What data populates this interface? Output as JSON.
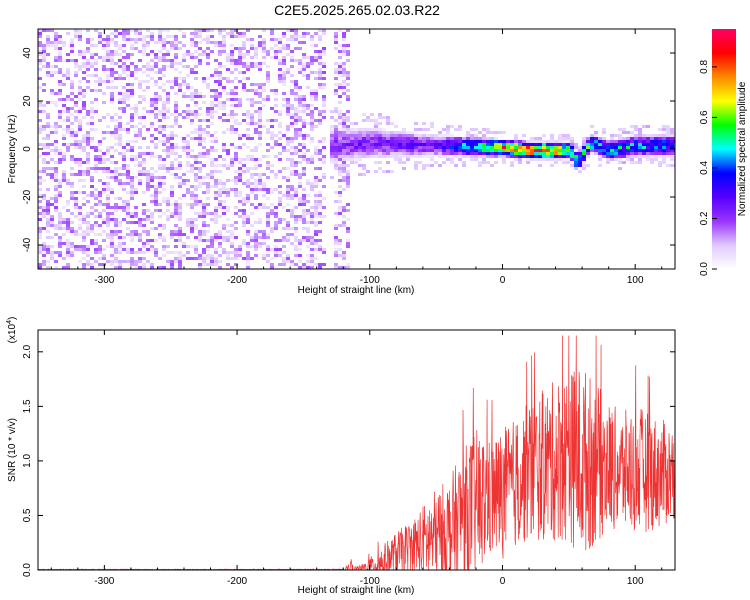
{
  "title": "C2E5.2025.265.02.03.R22",
  "colors": {
    "snr_line": "#ee3333",
    "background": "#ffffff",
    "axis": "#000000"
  },
  "chart_data": [
    {
      "type": "heatmap",
      "name": "spectrogram",
      "xlabel": "Height of straight line (km)",
      "ylabel": "Frequency (Hz)",
      "xlim": [
        -350,
        130
      ],
      "ylim": [
        -50,
        50
      ],
      "x_ticks": [
        -300,
        -200,
        -100,
        0,
        100
      ],
      "x_tick_labels": [
        "-300",
        "-200",
        "-100",
        "0",
        "100"
      ],
      "y_ticks": [
        -40,
        -20,
        0,
        20,
        40
      ],
      "y_tick_labels": [
        "-40",
        "-20",
        "0",
        "20",
        "40"
      ],
      "colorbar": {
        "label": "Normalized spectral amplitude",
        "range": [
          0,
          0.95
        ],
        "ticks": [
          0.0,
          0.2,
          0.4,
          0.6,
          0.8
        ],
        "tick_labels": [
          "0.0",
          "0.2",
          "0.4",
          "0.6",
          "0.8"
        ],
        "colormap": [
          "#ffffff",
          "#e0c8ff",
          "#9933ff",
          "#5500ff",
          "#0000ff",
          "#00ffff",
          "#00ff00",
          "#ffff00",
          "#ff8800",
          "#ff0000",
          "#ff0066"
        ]
      },
      "regions": [
        {
          "description": "broadband noise",
          "x_range": [
            -350,
            -115
          ],
          "freq_range": [
            -50,
            50
          ],
          "amplitude": 0.1
        },
        {
          "description": "signal band",
          "x_range": [
            -130,
            130
          ],
          "center_freq_hz": [
            [
              -130,
              2
            ],
            [
              -100,
              3
            ],
            [
              -50,
              2
            ],
            [
              0,
              1
            ],
            [
              20,
              0
            ],
            [
              50,
              0
            ],
            [
              55,
              -5
            ],
            [
              65,
              3
            ],
            [
              80,
              0
            ],
            [
              100,
              2
            ],
            [
              130,
              2
            ]
          ],
          "halfwidth_hz": [
            [
              -130,
              8
            ],
            [
              -100,
              7
            ],
            [
              -50,
              5
            ],
            [
              0,
              4
            ],
            [
              50,
              4
            ],
            [
              100,
              5
            ],
            [
              130,
              5
            ]
          ],
          "peak_amplitude": [
            [
              -130,
              0.25
            ],
            [
              -50,
              0.3
            ],
            [
              -20,
              0.6
            ],
            [
              0,
              0.85
            ],
            [
              30,
              0.95
            ],
            [
              50,
              0.7
            ],
            [
              70,
              0.55
            ],
            [
              100,
              0.5
            ],
            [
              130,
              0.45
            ]
          ]
        }
      ]
    },
    {
      "type": "line",
      "name": "snr",
      "xlabel": "Height of straight line (km)",
      "ylabel": "SNR (10 * v/v)",
      "y_multiplier": "(x10^4)",
      "xlim": [
        -350,
        130
      ],
      "ylim": [
        0,
        2.2
      ],
      "x_ticks": [
        -300,
        -200,
        -100,
        0,
        100
      ],
      "x_tick_labels": [
        "-300",
        "-200",
        "-100",
        "0",
        "100"
      ],
      "y_ticks": [
        0,
        0.5,
        1.0,
        1.5,
        2.0
      ],
      "y_tick_labels": [
        "0.0",
        "0.5",
        "1.0",
        "1.5",
        "2.0"
      ],
      "series": [
        {
          "name": "SNR",
          "color": "#ee3333",
          "envelope_x": [
            -350,
            -120,
            -115,
            -110,
            -100,
            -90,
            -80,
            -70,
            -60,
            -50,
            -40,
            -30,
            -20,
            -10,
            0,
            10,
            20,
            30,
            40,
            50,
            60,
            70,
            80,
            90,
            100,
            110,
            120,
            130
          ],
          "envelope_mean": [
            0.005,
            0.005,
            0.02,
            0.01,
            0.03,
            0.08,
            0.15,
            0.2,
            0.25,
            0.3,
            0.35,
            0.5,
            0.6,
            0.65,
            0.7,
            0.8,
            0.9,
            0.95,
            1.0,
            1.05,
            1.0,
            0.98,
            0.95,
            0.9,
            0.92,
            0.9,
            0.88,
            0.9
          ],
          "envelope_spread": [
            0.003,
            0.003,
            0.06,
            0.01,
            0.08,
            0.15,
            0.2,
            0.25,
            0.35,
            0.45,
            0.5,
            0.6,
            0.7,
            0.55,
            0.6,
            0.6,
            0.65,
            0.7,
            0.75,
            0.8,
            0.9,
            0.75,
            0.6,
            0.55,
            0.6,
            0.55,
            0.5,
            0.45
          ],
          "peak_value": 2.15
        }
      ]
    }
  ]
}
